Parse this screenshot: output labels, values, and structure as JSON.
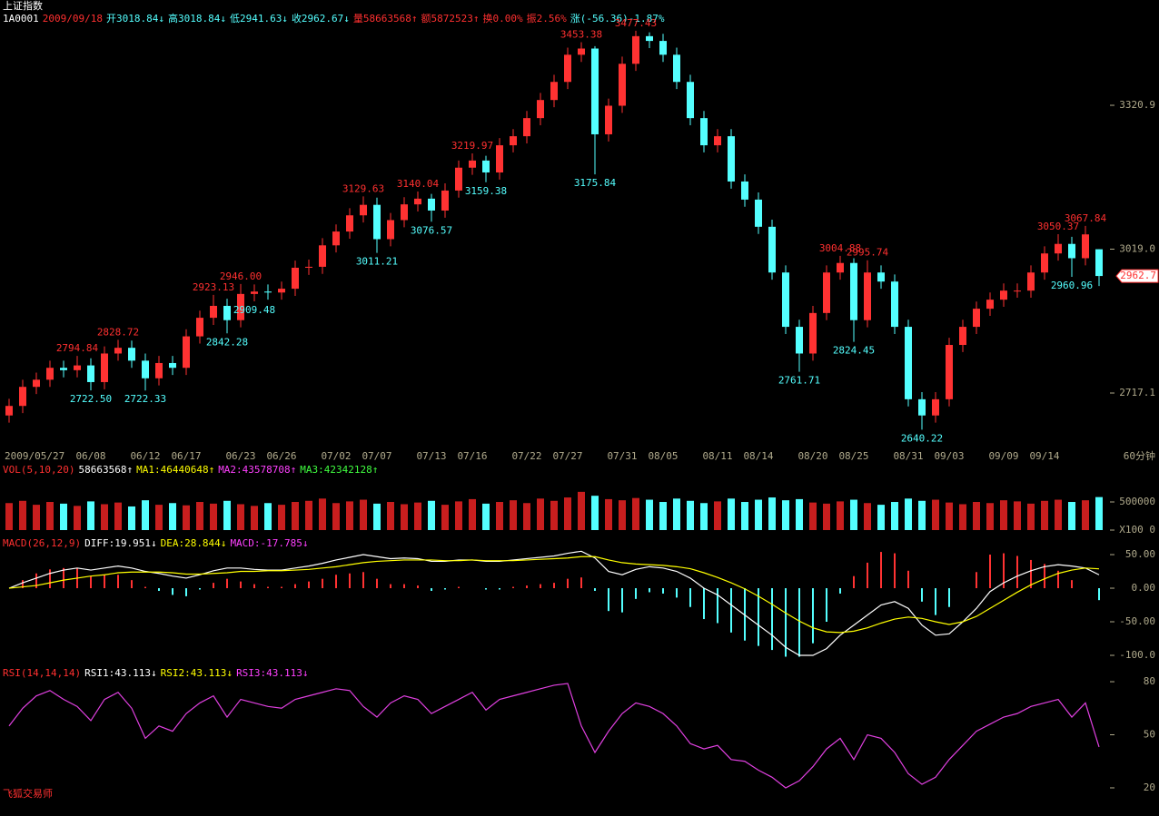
{
  "axis_color": "#b0aa8c",
  "footer": "飞狐交易师",
  "footer_color": "#ff3030",
  "chart_data": [
    {
      "type": "candlestick",
      "title": "上证指数",
      "title_color": "#ffffff",
      "legend": [
        {
          "text": "1A0001",
          "color": "#ffffff"
        },
        {
          "text": "2009/09/18",
          "color": "#ff3030"
        },
        {
          "text": "开3018.84↓",
          "color": "#54ffff"
        },
        {
          "text": "高3018.84↓",
          "color": "#54ffff"
        },
        {
          "text": "低2941.63↓",
          "color": "#54ffff"
        },
        {
          "text": "收2962.67↓",
          "color": "#54ffff"
        },
        {
          "text": "量58663568↑",
          "color": "#ff3030"
        },
        {
          "text": "额5872523↑",
          "color": "#ff3030"
        },
        {
          "text": "换0.00%",
          "color": "#ff3030"
        },
        {
          "text": "振2.56%",
          "color": "#ff3030"
        },
        {
          "text": "涨(-56.36)-1.87%",
          "color": "#54ffff"
        }
      ],
      "period_label": "60分钟",
      "last_price_label": "2962.7",
      "up_color": "#ff3232",
      "down_color": "#54ffff",
      "ylim": [
        2608.5,
        3503.8
      ],
      "yticks": [
        {
          "value": 2717.1,
          "label": "2717.1"
        },
        {
          "value": 3019.0,
          "label": "3019.0"
        },
        {
          "value": 3320.9,
          "label": "3320.9"
        }
      ],
      "categories": [
        "2009/05/27",
        null,
        null,
        null,
        null,
        null,
        "06/08",
        null,
        null,
        null,
        "06/12",
        null,
        null,
        "06/17",
        null,
        null,
        null,
        "06/23",
        null,
        null,
        "06/26",
        null,
        null,
        null,
        "07/02",
        null,
        null,
        "07/07",
        null,
        null,
        null,
        "07/13",
        null,
        null,
        "07/16",
        null,
        null,
        null,
        "07/22",
        null,
        null,
        "07/27",
        null,
        null,
        null,
        "07/31",
        null,
        null,
        "08/05",
        null,
        null,
        null,
        "08/11",
        null,
        null,
        "08/14",
        null,
        null,
        null,
        "08/20",
        null,
        null,
        "08/25",
        null,
        null,
        null,
        "08/31",
        null,
        null,
        "09/03",
        null,
        null,
        null,
        "09/09",
        null,
        null,
        "09/14",
        null,
        null,
        null,
        null
      ],
      "open": [
        2670,
        2690,
        2730,
        2745,
        2770,
        2765,
        2775,
        2740,
        2800,
        2812,
        2785,
        2748,
        2780,
        2770,
        2836,
        2875,
        2900,
        2870,
        2925,
        2930,
        2928,
        2936,
        2980,
        2982,
        3027,
        3056,
        3090,
        3112,
        3040,
        3080,
        3113,
        3125,
        3100,
        3142,
        3190,
        3205,
        3180,
        3237,
        3256,
        3294,
        3332,
        3370,
        3427,
        3440,
        3260,
        3320,
        3408,
        3466,
        3456,
        3427,
        3370,
        3294,
        3237,
        3256,
        3161,
        3123,
        3066,
        2970,
        2856,
        2800,
        2885,
        2970,
        2990,
        2870,
        2970,
        2951,
        2856,
        2704,
        2670,
        2704,
        2818,
        2856,
        2894,
        2913,
        2932,
        2932,
        2970,
        3010,
        3030,
        3000,
        3018.84
      ],
      "high": [
        2705,
        2745,
        2760,
        2785,
        2785,
        2794.84,
        2790,
        2815,
        2828.72,
        2827,
        2800,
        2795,
        2795,
        2851,
        2890,
        2923.13,
        2915,
        2946,
        2945,
        2945,
        2951,
        2995,
        2997,
        3042,
        3071,
        3105,
        3129.63,
        3127,
        3095,
        3128,
        3140.04,
        3135,
        3157,
        3205,
        3219.97,
        3215,
        3252,
        3271,
        3309,
        3347,
        3385,
        3442,
        3453.38,
        3445,
        3335,
        3423,
        3477.43,
        3474,
        3471,
        3442,
        3385,
        3309,
        3271,
        3271,
        3176,
        3138,
        3081,
        2985,
        2871,
        2900,
        2985,
        3004.88,
        3000,
        2995.74,
        2985,
        2966,
        2871,
        2719,
        2719,
        2833,
        2871,
        2909,
        2928,
        2947,
        2947,
        2985,
        3025,
        3050.37,
        3045,
        3067.84,
        3018.84
      ],
      "low": [
        2655,
        2675,
        2715,
        2730,
        2750,
        2750,
        2722.5,
        2725,
        2785,
        2770,
        2722.33,
        2733,
        2755,
        2755,
        2821,
        2860,
        2842.28,
        2855,
        2909.48,
        2913,
        2913,
        2921,
        2965,
        2967,
        3012,
        3041,
        3075,
        3011.21,
        3025,
        3065,
        3098,
        3076.57,
        3085,
        3127,
        3175,
        3159.38,
        3165,
        3222,
        3241,
        3279,
        3317,
        3355,
        3412,
        3175.84,
        3245,
        3305,
        3393,
        3441,
        3412,
        3355,
        3279,
        3222,
        3222,
        3146,
        3108,
        3051,
        2955,
        2841,
        2761.71,
        2785,
        2870,
        2955,
        2824.45,
        2855,
        2936,
        2841,
        2689,
        2640.22,
        2655,
        2689,
        2803,
        2841,
        2879,
        2898,
        2917,
        2917,
        2955,
        2995,
        2960.96,
        2985,
        2941.63
      ],
      "close": [
        2690,
        2730,
        2745,
        2770,
        2765,
        2775,
        2740,
        2800,
        2812,
        2785,
        2748,
        2780,
        2770,
        2836,
        2875,
        2900,
        2870,
        2925,
        2930,
        2928,
        2936,
        2980,
        2982,
        3027,
        3056,
        3090,
        3112,
        3040,
        3080,
        3113,
        3125,
        3100,
        3142,
        3190,
        3205,
        3180,
        3237,
        3256,
        3294,
        3332,
        3370,
        3427,
        3440,
        3260,
        3320,
        3408,
        3466,
        3456,
        3427,
        3370,
        3294,
        3237,
        3256,
        3161,
        3123,
        3066,
        2970,
        2856,
        2800,
        2885,
        2970,
        2990,
        2870,
        2970,
        2951,
        2856,
        2704,
        2670,
        2704,
        2818,
        2856,
        2894,
        2913,
        2932,
        2932,
        2970,
        3010,
        3030,
        3000,
        3050,
        2962.67
      ],
      "high_labels": [
        null,
        null,
        null,
        null,
        null,
        "2794.84",
        null,
        null,
        "2828.72",
        null,
        null,
        null,
        null,
        null,
        null,
        "2923.13",
        null,
        "2946.00",
        null,
        null,
        null,
        null,
        null,
        null,
        null,
        null,
        "3129.63",
        null,
        null,
        null,
        "3140.04",
        null,
        null,
        null,
        "3219.97",
        null,
        null,
        null,
        null,
        null,
        null,
        null,
        "3453.38",
        null,
        null,
        null,
        "3477.43",
        null,
        null,
        null,
        null,
        null,
        null,
        null,
        null,
        null,
        null,
        null,
        null,
        null,
        null,
        "3004.88",
        null,
        "2995.74",
        null,
        null,
        null,
        null,
        null,
        null,
        null,
        null,
        null,
        null,
        null,
        null,
        null,
        "3050.37",
        null,
        "3067.84",
        null
      ],
      "low_labels": [
        null,
        null,
        null,
        null,
        null,
        null,
        "2722.50",
        null,
        null,
        null,
        "2722.33",
        null,
        null,
        null,
        null,
        null,
        "2842.28",
        null,
        "2909.48",
        null,
        null,
        null,
        null,
        null,
        null,
        null,
        null,
        "3011.21",
        null,
        null,
        null,
        "3076.57",
        null,
        null,
        null,
        "3159.38",
        null,
        null,
        null,
        null,
        null,
        null,
        null,
        "3175.84",
        null,
        null,
        null,
        null,
        null,
        null,
        null,
        null,
        null,
        null,
        null,
        null,
        null,
        null,
        "2761.71",
        null,
        null,
        null,
        "2824.45",
        null,
        null,
        null,
        null,
        "2640.22",
        null,
        null,
        null,
        null,
        null,
        null,
        null,
        null,
        null,
        null,
        "2960.96",
        null,
        null
      ]
    },
    {
      "type": "bar",
      "legend": [
        {
          "text": "VOL(5,10,20)",
          "color": "#ff3030"
        },
        {
          "text": "58663568↑",
          "color": "#ffffff"
        },
        {
          "text": "MA1:46440648↑",
          "color": "#ffff00"
        },
        {
          "text": "MA2:43578708↑",
          "color": "#ff40ff"
        },
        {
          "text": "MA3:42342128↑",
          "color": "#40ff40"
        }
      ],
      "up_color": "#c81e1e",
      "down_color": "#54ffff",
      "ylim": [
        0,
        710000
      ],
      "yticks": [
        {
          "value": 0,
          "label": "X100 0"
        },
        500000
      ],
      "values": [
        480000,
        520000,
        450000,
        500000,
        470000,
        430000,
        510000,
        460000,
        490000,
        420000,
        530000,
        450000,
        480000,
        440000,
        500000,
        470000,
        520000,
        460000,
        430000,
        480000,
        450000,
        500000,
        520000,
        560000,
        480000,
        510000,
        540000,
        470000,
        500000,
        460000,
        490000,
        520000,
        450000,
        510000,
        550000,
        470000,
        500000,
        530000,
        480000,
        560000,
        520000,
        580000,
        680000,
        610000,
        550000,
        530000,
        570000,
        540000,
        500000,
        560000,
        520000,
        480000,
        510000,
        560000,
        500000,
        540000,
        580000,
        530000,
        550000,
        490000,
        470000,
        510000,
        540000,
        480000,
        450000,
        500000,
        560000,
        520000,
        540000,
        490000,
        460000,
        500000,
        480000,
        530000,
        510000,
        470000,
        520000,
        540000,
        500000,
        530000,
        586636
      ]
    },
    {
      "type": "macd",
      "legend": [
        {
          "text": "MACD(26,12,9)",
          "color": "#ff3030"
        },
        {
          "text": "DIFF:19.951↓",
          "color": "#ffffff"
        },
        {
          "text": "DEA:28.844↓",
          "color": "#ffff00"
        },
        {
          "text": "MACD:-17.785↓",
          "color": "#ff40ff"
        }
      ],
      "diff_color": "#ffffff",
      "dea_color": "#ffff00",
      "up_color": "#ff3232",
      "down_color": "#54ffff",
      "ylim": [
        -110.8,
        64.9
      ],
      "yticks": [
        {
          "value": 50,
          "label": "50.00"
        },
        {
          "value": 0,
          "label": "0.00"
        },
        {
          "value": -50,
          "label": "-50.00"
        },
        {
          "value": -100,
          "label": "-100.0"
        }
      ],
      "diff": [
        0,
        8,
        15,
        22,
        27,
        30,
        27,
        30,
        33,
        30,
        25,
        22,
        18,
        15,
        20,
        26,
        30,
        30,
        28,
        27,
        27,
        30,
        33,
        37,
        42,
        46,
        50,
        47,
        44,
        45,
        44,
        40,
        40,
        42,
        42,
        40,
        40,
        42,
        44,
        46,
        48,
        52,
        55,
        45,
        25,
        20,
        28,
        32,
        30,
        25,
        15,
        0,
        -10,
        -25,
        -40,
        -55,
        -70,
        -88,
        -100,
        -100,
        -90,
        -70,
        -55,
        -40,
        -25,
        -20,
        -30,
        -55,
        -70,
        -68,
        -50,
        -30,
        -5,
        8,
        18,
        26,
        32,
        35,
        33,
        30,
        19.951
      ],
      "dea": [
        0,
        2,
        4,
        8,
        12,
        15,
        18,
        20,
        23,
        24,
        24,
        24,
        23,
        21,
        21,
        22,
        23,
        25,
        25,
        26,
        26,
        27,
        28,
        30,
        32,
        35,
        38,
        40,
        41,
        42,
        42,
        42,
        41,
        41,
        42,
        41,
        41,
        41,
        42,
        43,
        44,
        45,
        47,
        47,
        42,
        38,
        36,
        35,
        34,
        32,
        29,
        23,
        16,
        8,
        -1,
        -12,
        -24,
        -37,
        -49,
        -59,
        -65,
        -66,
        -64,
        -59,
        -52,
        -46,
        -43,
        -45,
        -50,
        -54,
        -50,
        -42,
        -30,
        -18,
        -6,
        5,
        14,
        22,
        27,
        30,
        28.844
      ],
      "macd": [
        0,
        12,
        22,
        28,
        30,
        30,
        18,
        20,
        20,
        12,
        2,
        -4,
        -10,
        -12,
        -2,
        8,
        14,
        10,
        6,
        2,
        2,
        6,
        10,
        14,
        20,
        22,
        24,
        14,
        6,
        6,
        4,
        -4,
        -2,
        2,
        0,
        -2,
        -2,
        2,
        4,
        6,
        8,
        14,
        16,
        -4,
        -34,
        -36,
        -16,
        -6,
        -8,
        -14,
        -28,
        -46,
        -52,
        -66,
        -78,
        -86,
        -92,
        -102,
        -102,
        -82,
        -50,
        -8,
        18,
        38,
        54,
        52,
        26,
        -20,
        -40,
        -28,
        0,
        24,
        50,
        52,
        48,
        42,
        36,
        26,
        12,
        0,
        -17.785
      ]
    },
    {
      "type": "line",
      "legend": [
        {
          "text": "RSI(14,14,14)",
          "color": "#ff3030"
        },
        {
          "text": "RSI1:43.113↓",
          "color": "#ffffff"
        },
        {
          "text": "RSI2:43.113↓",
          "color": "#ffff00"
        },
        {
          "text": "RSI3:43.113↓",
          "color": "#ff40ff"
        }
      ],
      "color": "#e040e0",
      "ylim": [
        16.4,
        83.1
      ],
      "yticks": [
        80,
        50,
        20
      ],
      "values": [
        55,
        65,
        72,
        75,
        70,
        66,
        58,
        70,
        74,
        65,
        48,
        55,
        52,
        62,
        68,
        72,
        60,
        70,
        68,
        66,
        65,
        70,
        72,
        74,
        76,
        75,
        66,
        60,
        68,
        72,
        70,
        62,
        66,
        70,
        74,
        64,
        70,
        72,
        74,
        76,
        78,
        79,
        55,
        40,
        52,
        62,
        68,
        66,
        62,
        55,
        45,
        42,
        44,
        36,
        35,
        30,
        26,
        20,
        24,
        32,
        42,
        48,
        36,
        50,
        48,
        40,
        28,
        22,
        26,
        36,
        44,
        52,
        56,
        60,
        62,
        66,
        68,
        70,
        60,
        68,
        43.113
      ]
    }
  ]
}
